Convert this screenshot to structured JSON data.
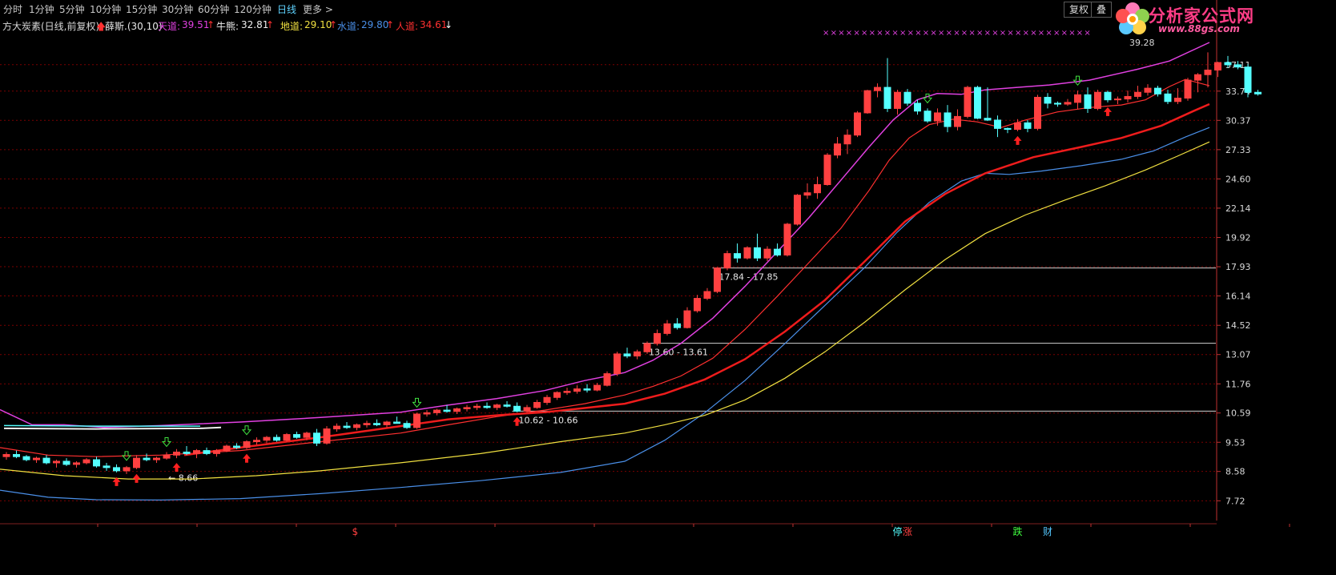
{
  "toolbar": {
    "tabs": [
      "分时",
      "1分钟",
      "5分钟",
      "10分钟",
      "15分钟",
      "30分钟",
      "60分钟",
      "120分钟",
      "日线",
      "更多 >"
    ],
    "active_tab": "日线",
    "restore_button": "复权",
    "overlay_button": "叠"
  },
  "logo": {
    "name": "分析家公式网",
    "url": "www.88gs.com"
  },
  "indicator": {
    "title": "方大炭素(日线,前复权)",
    "name": "薛斯.(30,10)",
    "values": [
      {
        "label": "天道:",
        "value": "39.51",
        "arrow": "↑",
        "color": "#e040e0"
      },
      {
        "label": "牛熊:",
        "value": "32.81",
        "arrow": "↑",
        "color": "#f0f0f0"
      },
      {
        "label": "地道:",
        "value": "29.10",
        "arrow": "↑",
        "color": "#f0e040"
      },
      {
        "label": "水道:",
        "value": "29.80",
        "arrow": "↑",
        "color": "#4a8fe8"
      },
      {
        "label": "人道:",
        "value": "34.61",
        "arrow": "↓",
        "color": "#ff3030"
      }
    ]
  },
  "colors": {
    "up": "#ff4040",
    "down": "#54ffff",
    "tiandao": "#e040e0",
    "rendao": "#ff3030",
    "niuxiong": "#ee1c1c",
    "shuidao": "#4a8fe8",
    "didao": "#f0e040",
    "grid": "#7a0000"
  },
  "chart_data": {
    "type": "candlestick",
    "title": "方大炭素(日线,前复权)",
    "y_ticks": [
      "37.11",
      "33.74",
      "30.37",
      "27.33",
      "24.60",
      "22.14",
      "19.92",
      "17.93",
      "16.14",
      "14.52",
      "13.07",
      "11.76",
      "10.59",
      "9.53",
      "8.58",
      "7.72"
    ],
    "ylim": [
      7.4,
      41.5
    ],
    "y_scale": "log",
    "candles": [
      [
        9.05,
        9.2,
        8.95,
        9.12
      ],
      [
        9.12,
        9.25,
        9.0,
        9.05
      ],
      [
        9.05,
        9.1,
        8.9,
        8.95
      ],
      [
        8.95,
        9.05,
        8.85,
        9.0
      ],
      [
        9.0,
        9.1,
        8.8,
        8.85
      ],
      [
        8.85,
        8.95,
        8.7,
        8.9
      ],
      [
        8.9,
        9.0,
        8.75,
        8.8
      ],
      [
        8.8,
        8.9,
        8.7,
        8.85
      ],
      [
        8.85,
        9.0,
        8.8,
        8.95
      ],
      [
        8.95,
        9.05,
        8.7,
        8.75
      ],
      [
        8.75,
        8.85,
        8.6,
        8.7
      ],
      [
        8.7,
        8.8,
        8.55,
        8.6
      ],
      [
        8.6,
        8.75,
        8.5,
        8.7
      ],
      [
        8.7,
        9.1,
        8.65,
        9.0
      ],
      [
        9.0,
        9.15,
        8.9,
        8.95
      ],
      [
        8.95,
        9.05,
        8.85,
        9.0
      ],
      [
        9.0,
        9.2,
        8.95,
        9.1
      ],
      [
        9.1,
        9.3,
        9.0,
        9.2
      ],
      [
        9.2,
        9.4,
        9.1,
        9.15
      ],
      [
        9.15,
        9.3,
        9.0,
        9.25
      ],
      [
        9.25,
        9.35,
        9.1,
        9.15
      ],
      [
        9.15,
        9.3,
        9.05,
        9.25
      ],
      [
        9.25,
        9.45,
        9.2,
        9.4
      ],
      [
        9.4,
        9.5,
        9.3,
        9.35
      ],
      [
        9.35,
        9.6,
        9.3,
        9.55
      ],
      [
        9.55,
        9.7,
        9.45,
        9.6
      ],
      [
        9.6,
        9.75,
        9.5,
        9.7
      ],
      [
        9.7,
        9.8,
        9.55,
        9.6
      ],
      [
        9.6,
        9.85,
        9.55,
        9.8
      ],
      [
        9.8,
        9.9,
        9.65,
        9.7
      ],
      [
        9.7,
        9.9,
        9.6,
        9.85
      ],
      [
        9.85,
        10.0,
        9.4,
        9.5
      ],
      [
        9.5,
        10.1,
        9.45,
        10.0
      ],
      [
        10.0,
        10.2,
        9.9,
        10.1
      ],
      [
        10.1,
        10.25,
        10.0,
        10.05
      ],
      [
        10.05,
        10.2,
        9.95,
        10.15
      ],
      [
        10.15,
        10.3,
        10.05,
        10.2
      ],
      [
        10.2,
        10.35,
        10.1,
        10.15
      ],
      [
        10.15,
        10.3,
        10.05,
        10.25
      ],
      [
        10.25,
        10.45,
        10.2,
        10.2
      ],
      [
        10.2,
        10.3,
        10.0,
        10.05
      ],
      [
        10.05,
        10.6,
        10.0,
        10.55
      ],
      [
        10.55,
        10.7,
        10.45,
        10.6
      ],
      [
        10.6,
        10.75,
        10.5,
        10.7
      ],
      [
        10.7,
        10.9,
        10.6,
        10.65
      ],
      [
        10.65,
        10.8,
        10.55,
        10.75
      ],
      [
        10.75,
        10.9,
        10.65,
        10.8
      ],
      [
        10.8,
        10.95,
        10.7,
        10.85
      ],
      [
        10.85,
        11.0,
        10.75,
        10.8
      ],
      [
        10.8,
        10.95,
        10.7,
        10.9
      ],
      [
        10.9,
        11.05,
        10.8,
        10.85
      ],
      [
        10.85,
        11.0,
        10.62,
        10.66
      ],
      [
        10.66,
        10.9,
        10.62,
        10.8
      ],
      [
        10.8,
        11.1,
        10.75,
        11.0
      ],
      [
        11.0,
        11.3,
        10.9,
        11.2
      ],
      [
        11.2,
        11.45,
        11.1,
        11.4
      ],
      [
        11.4,
        11.6,
        11.3,
        11.45
      ],
      [
        11.45,
        11.7,
        11.35,
        11.55
      ],
      [
        11.55,
        11.75,
        11.4,
        11.5
      ],
      [
        11.5,
        11.8,
        11.45,
        11.7
      ],
      [
        11.7,
        12.3,
        11.65,
        12.2
      ],
      [
        12.2,
        13.2,
        12.1,
        13.1
      ],
      [
        13.1,
        13.4,
        12.9,
        13.0
      ],
      [
        13.0,
        13.3,
        12.85,
        13.2
      ],
      [
        13.2,
        13.7,
        13.1,
        13.6
      ],
      [
        13.6,
        14.3,
        13.5,
        14.1
      ],
      [
        14.1,
        14.8,
        14.0,
        14.6
      ],
      [
        14.6,
        14.9,
        14.3,
        14.4
      ],
      [
        14.4,
        15.5,
        14.35,
        15.3
      ],
      [
        15.3,
        16.2,
        15.2,
        16.0
      ],
      [
        16.0,
        16.6,
        15.9,
        16.4
      ],
      [
        16.4,
        17.9,
        16.3,
        17.85
      ],
      [
        17.85,
        19.0,
        17.7,
        18.8
      ],
      [
        18.8,
        19.5,
        18.2,
        18.5
      ],
      [
        18.5,
        19.3,
        18.4,
        19.2
      ],
      [
        19.2,
        20.2,
        18.3,
        18.5
      ],
      [
        18.5,
        19.3,
        18.3,
        19.1
      ],
      [
        19.1,
        19.5,
        18.6,
        18.7
      ],
      [
        18.7,
        21.0,
        18.6,
        20.9
      ],
      [
        20.9,
        23.3,
        20.8,
        23.2
      ],
      [
        23.2,
        24.2,
        22.9,
        23.4
      ],
      [
        23.4,
        24.8,
        22.9,
        24.1
      ],
      [
        24.1,
        27.0,
        24.0,
        26.8
      ],
      [
        26.8,
        28.6,
        26.5,
        27.9
      ],
      [
        27.9,
        29.4,
        26.9,
        28.8
      ],
      [
        28.8,
        31.4,
        28.6,
        31.2
      ],
      [
        31.2,
        33.9,
        31.1,
        33.8
      ],
      [
        33.8,
        34.7,
        33.0,
        34.2
      ],
      [
        34.2,
        38.0,
        31.3,
        31.7
      ],
      [
        31.7,
        33.9,
        31.0,
        33.6
      ],
      [
        33.6,
        34.0,
        32.0,
        32.3
      ],
      [
        32.3,
        32.7,
        31.0,
        31.4
      ],
      [
        31.4,
        31.7,
        30.1,
        30.3
      ],
      [
        30.3,
        31.7,
        29.8,
        31.2
      ],
      [
        31.2,
        32.1,
        29.1,
        29.7
      ],
      [
        29.7,
        31.6,
        29.3,
        30.8
      ],
      [
        30.8,
        34.4,
        30.6,
        34.2
      ],
      [
        34.2,
        34.4,
        30.5,
        30.6
      ],
      [
        30.6,
        34.2,
        30.3,
        30.4
      ],
      [
        30.4,
        30.9,
        28.6,
        29.5
      ],
      [
        29.5,
        29.6,
        29.0,
        29.4
      ],
      [
        29.4,
        30.5,
        29.2,
        30.1
      ],
      [
        30.1,
        30.4,
        29.1,
        29.5
      ],
      [
        29.5,
        33.3,
        29.3,
        33.0
      ],
      [
        33.0,
        33.5,
        31.7,
        32.3
      ],
      [
        32.3,
        32.5,
        31.9,
        32.2
      ],
      [
        32.2,
        32.8,
        32.0,
        32.4
      ],
      [
        32.4,
        33.8,
        31.6,
        33.3
      ],
      [
        33.3,
        34.2,
        31.2,
        31.7
      ],
      [
        31.7,
        33.9,
        31.5,
        33.6
      ],
      [
        33.6,
        33.8,
        32.4,
        32.7
      ],
      [
        32.7,
        33.1,
        32.2,
        32.8
      ],
      [
        32.8,
        33.8,
        32.4,
        33.1
      ],
      [
        33.1,
        34.4,
        32.8,
        33.6
      ],
      [
        33.6,
        34.6,
        33.2,
        34.1
      ],
      [
        34.1,
        34.4,
        33.1,
        33.4
      ],
      [
        33.4,
        33.9,
        32.2,
        32.5
      ],
      [
        32.5,
        34.1,
        32.2,
        32.9
      ],
      [
        32.9,
        35.4,
        32.6,
        35.1
      ],
      [
        35.1,
        36.0,
        33.6,
        35.8
      ],
      [
        35.8,
        38.8,
        34.2,
        36.4
      ],
      [
        36.4,
        37.5,
        35.5,
        37.4
      ],
      [
        37.4,
        38.3,
        36.7,
        37.1
      ],
      [
        37.1,
        37.6,
        36.5,
        36.8
      ],
      [
        36.8,
        37.2,
        33.0,
        33.6
      ],
      [
        33.6,
        33.9,
        33.2,
        33.4
      ]
    ],
    "lines": {
      "tiandao": [
        [
          0,
          10.72
        ],
        [
          40,
          10.15
        ],
        [
          80,
          10.15
        ],
        [
          130,
          10.05
        ],
        [
          200,
          10.12
        ],
        [
          300,
          10.25
        ],
        [
          400,
          10.42
        ],
        [
          500,
          10.62
        ],
        [
          560,
          10.9
        ],
        [
          620,
          11.15
        ],
        [
          680,
          11.48
        ],
        [
          730,
          11.9
        ],
        [
          780,
          12.25
        ],
        [
          815,
          12.8
        ],
        [
          850,
          13.6
        ],
        [
          890,
          14.9
        ],
        [
          930,
          16.7
        ],
        [
          970,
          18.9
        ],
        [
          1010,
          21.4
        ],
        [
          1050,
          24.5
        ],
        [
          1085,
          27.6
        ],
        [
          1115,
          30.4
        ],
        [
          1145,
          32.7
        ],
        [
          1170,
          33.45
        ],
        [
          1200,
          33.35
        ],
        [
          1230,
          33.9
        ],
        [
          1270,
          34.2
        ],
        [
          1310,
          34.5
        ],
        [
          1360,
          35.1
        ],
        [
          1420,
          36.5
        ],
        [
          1460,
          37.6
        ],
        [
          1510,
          40.2
        ]
      ],
      "rendao": [
        [
          0,
          9.35
        ],
        [
          60,
          9.1
        ],
        [
          120,
          9.05
        ],
        [
          200,
          9.1
        ],
        [
          300,
          9.25
        ],
        [
          400,
          9.55
        ],
        [
          500,
          9.85
        ],
        [
          560,
          10.15
        ],
        [
          620,
          10.45
        ],
        [
          680,
          10.7
        ],
        [
          730,
          10.95
        ],
        [
          780,
          11.3
        ],
        [
          815,
          11.65
        ],
        [
          850,
          12.1
        ],
        [
          890,
          12.9
        ],
        [
          930,
          14.3
        ],
        [
          970,
          16.1
        ],
        [
          1010,
          18.2
        ],
        [
          1050,
          20.6
        ],
        [
          1085,
          23.6
        ],
        [
          1110,
          26.3
        ],
        [
          1135,
          28.5
        ],
        [
          1160,
          29.9
        ],
        [
          1190,
          30.5
        ],
        [
          1220,
          30.2
        ],
        [
          1250,
          29.6
        ],
        [
          1280,
          30.4
        ],
        [
          1320,
          31.3
        ],
        [
          1360,
          31.8
        ],
        [
          1400,
          32.1
        ],
        [
          1430,
          32.7
        ],
        [
          1460,
          34.3
        ],
        [
          1480,
          35.2
        ],
        [
          1510,
          34.4
        ]
      ],
      "niuxiong": [
        [
          230,
          9.1
        ],
        [
          300,
          9.35
        ],
        [
          400,
          9.7
        ],
        [
          500,
          10.1
        ],
        [
          560,
          10.35
        ],
        [
          620,
          10.5
        ],
        [
          680,
          10.62
        ],
        [
          730,
          10.78
        ],
        [
          780,
          10.95
        ],
        [
          830,
          11.35
        ],
        [
          880,
          11.95
        ],
        [
          930,
          12.85
        ],
        [
          980,
          14.2
        ],
        [
          1030,
          15.9
        ],
        [
          1080,
          18.3
        ],
        [
          1130,
          21.1
        ],
        [
          1180,
          23.3
        ],
        [
          1230,
          25.1
        ],
        [
          1290,
          26.6
        ],
        [
          1350,
          27.6
        ],
        [
          1400,
          28.5
        ],
        [
          1450,
          29.8
        ],
        [
          1490,
          31.4
        ],
        [
          1510,
          32.2
        ]
      ],
      "shuidao": [
        [
          0,
          8.02
        ],
        [
          60,
          7.82
        ],
        [
          120,
          7.75
        ],
        [
          200,
          7.74
        ],
        [
          300,
          7.78
        ],
        [
          400,
          7.92
        ],
        [
          500,
          8.1
        ],
        [
          600,
          8.3
        ],
        [
          700,
          8.55
        ],
        [
          780,
          8.9
        ],
        [
          830,
          9.6
        ],
        [
          880,
          10.6
        ],
        [
          930,
          11.9
        ],
        [
          980,
          13.6
        ],
        [
          1030,
          15.6
        ],
        [
          1080,
          17.9
        ],
        [
          1120,
          20.3
        ],
        [
          1160,
          22.6
        ],
        [
          1200,
          24.4
        ],
        [
          1230,
          25.1
        ],
        [
          1260,
          25.0
        ],
        [
          1300,
          25.3
        ],
        [
          1350,
          25.8
        ],
        [
          1400,
          26.4
        ],
        [
          1440,
          27.2
        ],
        [
          1480,
          28.6
        ],
        [
          1510,
          29.6
        ]
      ],
      "didao": [
        [
          0,
          8.65
        ],
        [
          80,
          8.45
        ],
        [
          160,
          8.35
        ],
        [
          240,
          8.35
        ],
        [
          320,
          8.45
        ],
        [
          400,
          8.6
        ],
        [
          500,
          8.85
        ],
        [
          600,
          9.15
        ],
        [
          700,
          9.55
        ],
        [
          780,
          9.85
        ],
        [
          830,
          10.15
        ],
        [
          880,
          10.5
        ],
        [
          930,
          11.1
        ],
        [
          980,
          12.0
        ],
        [
          1030,
          13.2
        ],
        [
          1080,
          14.7
        ],
        [
          1130,
          16.5
        ],
        [
          1180,
          18.4
        ],
        [
          1230,
          20.2
        ],
        [
          1280,
          21.6
        ],
        [
          1330,
          22.8
        ],
        [
          1380,
          24.0
        ],
        [
          1430,
          25.4
        ],
        [
          1470,
          26.7
        ],
        [
          1510,
          28.1
        ]
      ],
      "white": [
        [
          5,
          10.02
        ],
        [
          120,
          10.0
        ],
        [
          250,
          10.02
        ],
        [
          276,
          10.05
        ]
      ],
      "cyan": [
        [
          5,
          10.12
        ],
        [
          120,
          10.1
        ],
        [
          250,
          10.1
        ]
      ]
    },
    "annotations": [
      {
        "text": "17.84 - 17.85",
        "price": 17.85,
        "start_index": 71
      },
      {
        "text": "13.60 - 13.61",
        "price": 13.61,
        "start_index": 64
      },
      {
        "text": "10.62 - 10.66",
        "price": 10.66,
        "start_index": 51
      },
      {
        "text": "← 8.66",
        "price": 8.66,
        "start_index": 16
      }
    ],
    "up_arrows": [
      11,
      13,
      17,
      24,
      51,
      101,
      110
    ],
    "down_arrows": [
      12,
      16,
      24,
      41,
      92,
      107
    ],
    "top_label": "39.28",
    "bottom_labels": [
      {
        "text": "$",
        "index": 35,
        "color": "#ff4040"
      },
      {
        "text": "停",
        "index": 89,
        "color": "#54ffff"
      },
      {
        "text": "涨",
        "index": 90,
        "color": "#ff4040"
      },
      {
        "text": "跌",
        "index": 101,
        "color": "#40ff40"
      },
      {
        "text": "财",
        "index": 104,
        "color": "#54c8ff"
      }
    ],
    "stars_count": 35
  }
}
